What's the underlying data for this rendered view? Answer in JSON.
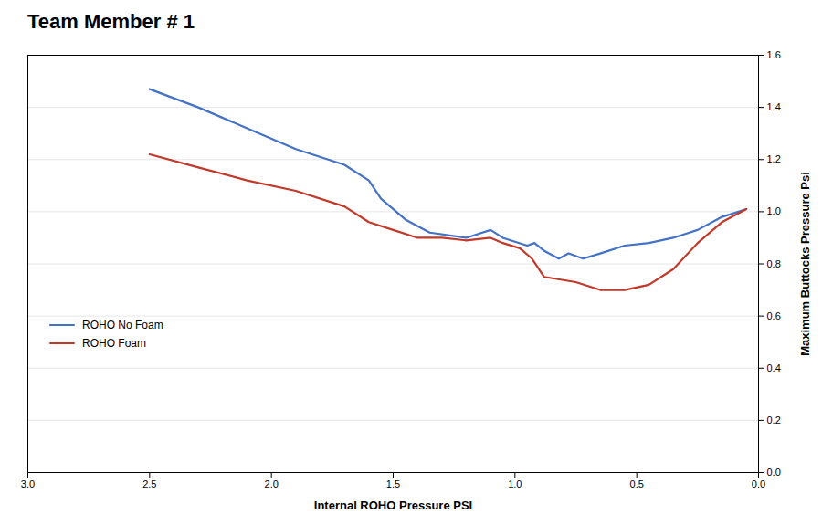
{
  "chart_data": {
    "type": "line",
    "title": "Team Member # 1",
    "xlabel": "Internal ROHO Pressure PSI",
    "ylabel": "Maximum Buttocks Pressure Psi",
    "xlim": [
      3,
      0
    ],
    "ylim": [
      0,
      1.6
    ],
    "xticks": [
      {
        "value": 3,
        "label": "3.0"
      },
      2.5,
      {
        "value": 2,
        "label": "2.0"
      },
      1.5,
      {
        "value": 1,
        "label": "1.0"
      },
      0.5,
      {
        "value": 0,
        "label": "0.0"
      }
    ],
    "yticks": [
      {
        "value": 0,
        "label": "0.0"
      },
      0.2,
      0.4,
      0.6,
      0.8,
      {
        "value": 1.0,
        "label": "1.0"
      },
      1.2,
      1.4,
      1.6
    ],
    "grid": "y",
    "legend": "lower left",
    "series": [
      {
        "name": "ROHO No Foam",
        "color": "#4472C4",
        "x": [
          2.5,
          2.3,
          2.1,
          1.9,
          1.7,
          1.6,
          1.55,
          1.45,
          1.35,
          1.2,
          1.1,
          1.05,
          0.95,
          0.92,
          0.88,
          0.82,
          0.78,
          0.72,
          0.65,
          0.55,
          0.45,
          0.35,
          0.25,
          0.15,
          0.05
        ],
        "values": [
          1.47,
          1.4,
          1.32,
          1.24,
          1.18,
          1.12,
          1.05,
          0.97,
          0.92,
          0.9,
          0.93,
          0.9,
          0.87,
          0.88,
          0.85,
          0.82,
          0.84,
          0.82,
          0.84,
          0.87,
          0.88,
          0.9,
          0.93,
          0.98,
          1.01
        ]
      },
      {
        "name": "ROHO Foam",
        "color": "#C0392B",
        "x": [
          2.5,
          2.3,
          2.1,
          1.9,
          1.7,
          1.6,
          1.5,
          1.4,
          1.3,
          1.2,
          1.1,
          1.05,
          0.98,
          0.93,
          0.88,
          0.75,
          0.65,
          0.55,
          0.45,
          0.35,
          0.25,
          0.15,
          0.05
        ],
        "values": [
          1.22,
          1.17,
          1.12,
          1.08,
          1.02,
          0.96,
          0.93,
          0.9,
          0.9,
          0.89,
          0.9,
          0.88,
          0.86,
          0.82,
          0.75,
          0.73,
          0.7,
          0.7,
          0.72,
          0.78,
          0.88,
          0.96,
          1.01
        ]
      }
    ]
  }
}
